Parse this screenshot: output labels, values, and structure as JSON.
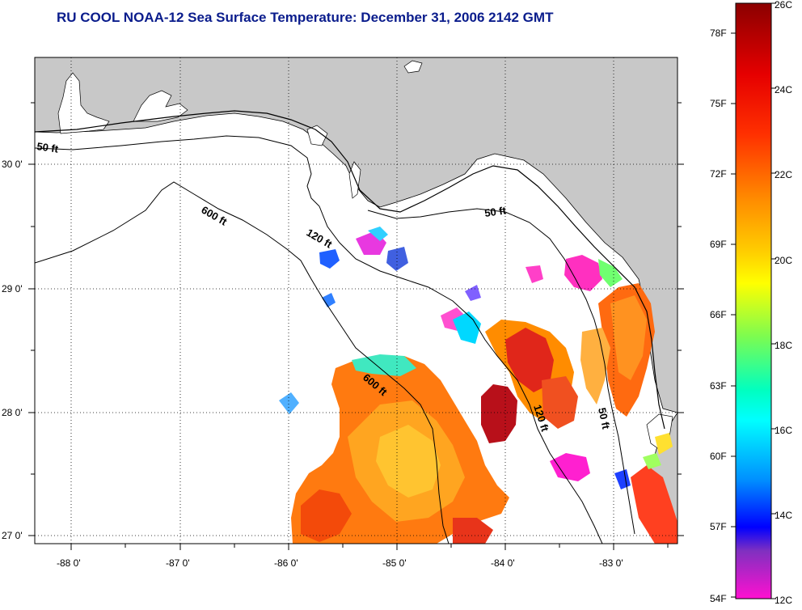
{
  "title": "RU COOL  NOAA-12  Sea Surface Temperature:  December 31, 2006 2142 GMT",
  "map": {
    "lon_labels": [
      "-88 0'",
      "-87 0'",
      "-86 0'",
      "-85 0'",
      "-84 0'",
      "-83 0'"
    ],
    "lat_labels": [
      "30 0'",
      "29 0'",
      "28 0'",
      "27 0'"
    ],
    "contours": {
      "c50_left": "50 ft",
      "c600_upper": "600 ft",
      "c120_upper": "120 ft",
      "c50_right": "50 ft",
      "c600_lower": "600 ft",
      "c120_lower": "120 ft",
      "c50_lower": "50 ft"
    }
  },
  "colorbar": {
    "celsius": [
      "26C",
      "24C",
      "22C",
      "20C",
      "18C",
      "16C",
      "14C",
      "12C"
    ],
    "fahrenheit": [
      "78F",
      "75F",
      "72F",
      "69F",
      "66F",
      "63F",
      "60F",
      "57F",
      "54F"
    ],
    "colors": [
      "#8b0000",
      "#ff2a00",
      "#ff8c00",
      "#ffd700",
      "#ffff00",
      "#b4ff32",
      "#00ffb4",
      "#00ffff",
      "#0090ff",
      "#0020ff",
      "#7030c8",
      "#ff00c8"
    ]
  }
}
